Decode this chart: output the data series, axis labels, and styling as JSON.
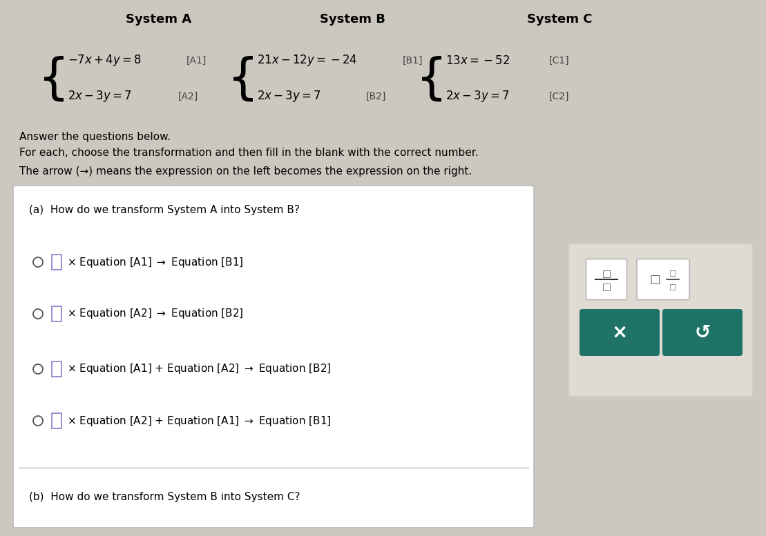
{
  "bg_color": "#ccc8c0",
  "title_system_a": "System A",
  "title_system_b": "System B",
  "title_system_c": "System C",
  "teal_color": "#1e7268",
  "white_color": "#ffffff",
  "panel_bg": "#e0dbd2",
  "main_box_bg": "#f0ede8",
  "header_fontsize": 13,
  "eq_fontsize": 12,
  "label_fontsize": 10,
  "instr_fontsize": 11,
  "option_fontsize": 11
}
